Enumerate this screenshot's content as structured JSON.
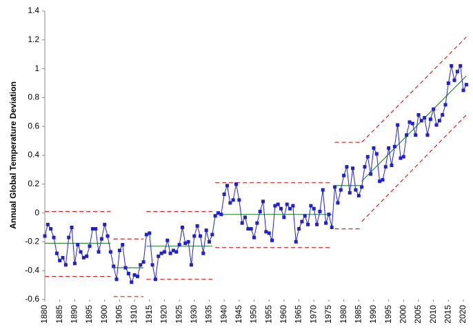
{
  "chart_data": {
    "type": "line",
    "y_label": "Annual Global Temperature Deviation",
    "x": [
      1880,
      1881,
      1882,
      1883,
      1884,
      1885,
      1886,
      1887,
      1888,
      1889,
      1890,
      1891,
      1892,
      1893,
      1894,
      1895,
      1896,
      1897,
      1898,
      1899,
      1900,
      1901,
      1902,
      1903,
      1904,
      1905,
      1906,
      1907,
      1908,
      1909,
      1910,
      1911,
      1912,
      1913,
      1914,
      1915,
      1916,
      1917,
      1918,
      1919,
      1920,
      1921,
      1922,
      1923,
      1924,
      1925,
      1926,
      1927,
      1928,
      1929,
      1930,
      1931,
      1932,
      1933,
      1934,
      1935,
      1936,
      1937,
      1938,
      1939,
      1940,
      1941,
      1942,
      1943,
      1944,
      1945,
      1946,
      1947,
      1948,
      1949,
      1950,
      1951,
      1952,
      1953,
      1954,
      1955,
      1956,
      1957,
      1958,
      1959,
      1960,
      1961,
      1962,
      1963,
      1964,
      1965,
      1966,
      1967,
      1968,
      1969,
      1970,
      1971,
      1972,
      1973,
      1974,
      1975,
      1976,
      1977,
      1978,
      1979,
      1980,
      1981,
      1982,
      1983,
      1984,
      1985,
      1986,
      1987,
      1988,
      1989,
      1990,
      1991,
      1992,
      1993,
      1994,
      1995,
      1996,
      1997,
      1998,
      1999,
      2000,
      2001,
      2002,
      2003,
      2004,
      2005,
      2006,
      2007,
      2008,
      2009,
      2010,
      2011,
      2012,
      2013,
      2014,
      2015,
      2016,
      2017,
      2018,
      2019,
      2020,
      2021
    ],
    "series": [
      {
        "color": "#1f1fd6",
        "values": [
          -0.16,
          -0.08,
          -0.11,
          -0.17,
          -0.28,
          -0.33,
          -0.31,
          -0.36,
          -0.17,
          -0.1,
          -0.35,
          -0.22,
          -0.27,
          -0.31,
          -0.3,
          -0.23,
          -0.11,
          -0.11,
          -0.27,
          -0.18,
          -0.08,
          -0.16,
          -0.27,
          -0.37,
          -0.46,
          -0.26,
          -0.22,
          -0.38,
          -0.42,
          -0.48,
          -0.43,
          -0.44,
          -0.36,
          -0.34,
          -0.15,
          -0.14,
          -0.36,
          -0.46,
          -0.3,
          -0.28,
          -0.27,
          -0.19,
          -0.28,
          -0.26,
          -0.27,
          -0.22,
          -0.1,
          -0.21,
          -0.2,
          -0.36,
          -0.16,
          -0.09,
          -0.16,
          -0.28,
          -0.12,
          -0.2,
          -0.15,
          -0.02,
          0.0,
          -0.01,
          0.13,
          0.19,
          0.07,
          0.09,
          0.2,
          0.09,
          -0.07,
          -0.03,
          -0.11,
          -0.11,
          -0.17,
          -0.07,
          0.01,
          0.08,
          -0.13,
          -0.14,
          -0.19,
          0.05,
          0.06,
          0.03,
          -0.03,
          0.06,
          0.03,
          0.05,
          -0.2,
          -0.11,
          -0.06,
          -0.02,
          -0.08,
          0.05,
          0.03,
          -0.08,
          0.01,
          0.16,
          -0.07,
          -0.01,
          -0.1,
          0.18,
          0.07,
          0.16,
          0.26,
          0.32,
          0.14,
          0.31,
          0.16,
          0.12,
          0.18,
          0.32,
          0.39,
          0.27,
          0.45,
          0.41,
          0.22,
          0.23,
          0.32,
          0.45,
          0.33,
          0.46,
          0.61,
          0.38,
          0.39,
          0.54,
          0.63,
          0.62,
          0.54,
          0.68,
          0.64,
          0.66,
          0.54,
          0.65,
          0.72,
          0.61,
          0.64,
          0.68,
          0.75,
          0.9,
          1.02,
          0.92,
          0.98,
          1.02,
          0.85,
          0.89
        ]
      }
    ],
    "segments": [
      {
        "x": [
          1880,
          1902
        ],
        "center": [
          -0.21,
          -0.21
        ],
        "ucl": [
          0.01,
          0.01
        ],
        "lcl": [
          -0.44,
          -0.44
        ]
      },
      {
        "x": [
          1903,
          1913
        ],
        "center": [
          -0.38,
          -0.38
        ],
        "ucl": [
          -0.18,
          -0.18
        ],
        "lcl": [
          -0.58,
          -0.58
        ]
      },
      {
        "x": [
          1914,
          1936
        ],
        "center": [
          -0.23,
          -0.23
        ],
        "ucl": [
          0.01,
          0.01
        ],
        "lcl": [
          -0.46,
          -0.46
        ]
      },
      {
        "x": [
          1937,
          1976
        ],
        "center": [
          -0.01,
          -0.01
        ],
        "ucl": [
          0.21,
          0.21
        ],
        "lcl": [
          -0.24,
          -0.24
        ]
      },
      {
        "x": [
          1977,
          1986
        ],
        "center": [
          0.19,
          0.19
        ],
        "ucl": [
          0.49,
          0.49
        ],
        "lcl": [
          -0.11,
          -0.11
        ]
      },
      {
        "x": [
          1986,
          2021
        ],
        "center": [
          0.22,
          0.95
        ],
        "ucl": [
          0.49,
          1.22
        ],
        "lcl": [
          -0.06,
          0.68
        ]
      }
    ],
    "center_color": "#2e8b2e",
    "limit_color": "#e02020",
    "xlim": [
      1880,
      2022
    ],
    "ylim": [
      -0.6,
      1.4
    ],
    "xticks": [
      1880,
      1885,
      1890,
      1895,
      1900,
      1905,
      1910,
      1915,
      1920,
      1925,
      1930,
      1935,
      1940,
      1945,
      1950,
      1955,
      1960,
      1965,
      1970,
      1975,
      1980,
      1985,
      1990,
      1995,
      2000,
      2005,
      2010,
      2015,
      2020
    ],
    "yticks": [
      -0.6,
      -0.4,
      -0.2,
      0,
      0.2,
      0.4,
      0.6,
      0.8,
      1,
      1.2,
      1.4
    ]
  }
}
